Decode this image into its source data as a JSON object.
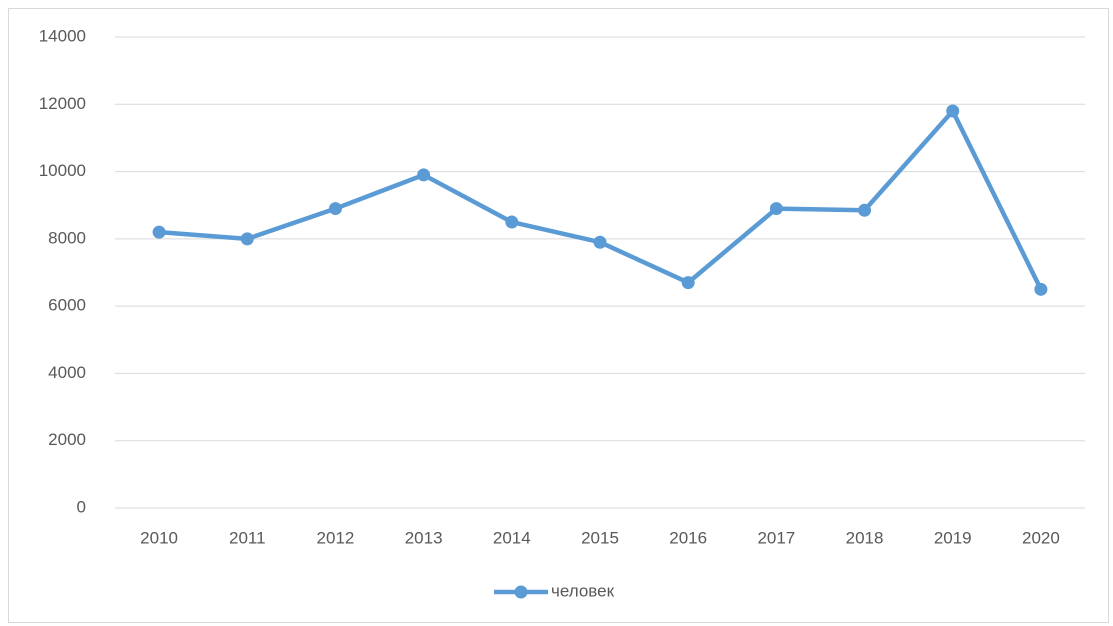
{
  "chart_data": {
    "type": "line",
    "categories": [
      "2010",
      "2011",
      "2012",
      "2013",
      "2014",
      "2015",
      "2016",
      "2017",
      "2018",
      "2019",
      "2020"
    ],
    "series": [
      {
        "name": "человек",
        "color": "#5b9bd5",
        "values": [
          8200,
          8000,
          8900,
          9900,
          8500,
          7900,
          6700,
          8900,
          8850,
          11800,
          6500
        ]
      }
    ],
    "ylim": [
      0,
      14000
    ],
    "yticks": [
      0,
      2000,
      4000,
      6000,
      8000,
      10000,
      12000,
      14000
    ],
    "grid": true,
    "legend": "bottom"
  }
}
